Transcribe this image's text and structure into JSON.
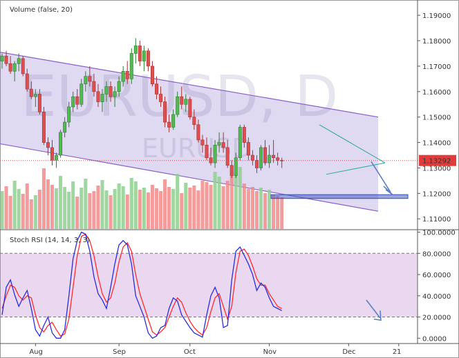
{
  "chart_data": {
    "type": "candlestick",
    "symbol": "EURUSD, D",
    "watermark_small": "EURUSD",
    "volume_title": "Volume (false, 20)",
    "rsi_title": "Stoch RSI (14, 14, 3, 3)",
    "price_axis": {
      "range": [
        1.106,
        1.196
      ],
      "ticks": [
        "1.19000",
        "1.18000",
        "1.17000",
        "1.16000",
        "1.15000",
        "1.14000",
        "1.13000",
        "1.12000",
        "1.11000"
      ]
    },
    "rsi_axis": {
      "range": [
        -5,
        101
      ],
      "ticks": [
        "100.0000",
        "80.0000",
        "60.0000",
        "40.0000",
        "20.0000",
        "0.0000"
      ],
      "band": [
        20,
        80
      ]
    },
    "time_axis": [
      "Aug",
      "Sep",
      "Oct",
      "Nov",
      "Dec",
      "21"
    ],
    "current_price": "1.13292",
    "candles": [
      [
        1.172,
        1.175,
        1.169,
        1.174
      ],
      [
        1.174,
        1.176,
        1.17,
        1.171
      ],
      [
        1.171,
        1.174,
        1.167,
        1.168
      ],
      [
        1.168,
        1.172,
        1.164,
        1.171
      ],
      [
        1.171,
        1.175,
        1.168,
        1.173
      ],
      [
        1.173,
        1.174,
        1.166,
        1.167
      ],
      [
        1.167,
        1.169,
        1.16,
        1.161
      ],
      [
        1.161,
        1.164,
        1.157,
        1.158
      ],
      [
        1.158,
        1.161,
        1.154,
        1.159
      ],
      [
        1.159,
        1.161,
        1.151,
        1.152
      ],
      [
        1.152,
        1.154,
        1.139,
        1.14
      ],
      [
        1.14,
        1.142,
        1.135,
        1.138
      ],
      [
        1.138,
        1.141,
        1.131,
        1.133
      ],
      [
        1.133,
        1.136,
        1.13,
        1.135
      ],
      [
        1.135,
        1.145,
        1.134,
        1.144
      ],
      [
        1.144,
        1.15,
        1.142,
        1.148
      ],
      [
        1.148,
        1.156,
        1.146,
        1.154
      ],
      [
        1.154,
        1.16,
        1.152,
        1.158
      ],
      [
        1.158,
        1.161,
        1.153,
        1.155
      ],
      [
        1.155,
        1.165,
        1.154,
        1.163
      ],
      [
        1.163,
        1.168,
        1.16,
        1.166
      ],
      [
        1.166,
        1.17,
        1.162,
        1.164
      ],
      [
        1.164,
        1.167,
        1.158,
        1.16
      ],
      [
        1.16,
        1.163,
        1.154,
        1.156
      ],
      [
        1.156,
        1.161,
        1.152,
        1.159
      ],
      [
        1.159,
        1.164,
        1.156,
        1.162
      ],
      [
        1.162,
        1.164,
        1.156,
        1.158
      ],
      [
        1.158,
        1.162,
        1.154,
        1.16
      ],
      [
        1.16,
        1.166,
        1.158,
        1.164
      ],
      [
        1.164,
        1.17,
        1.162,
        1.168
      ],
      [
        1.168,
        1.172,
        1.163,
        1.165
      ],
      [
        1.165,
        1.177,
        1.163,
        1.175
      ],
      [
        1.175,
        1.181,
        1.171,
        1.178
      ],
      [
        1.178,
        1.18,
        1.17,
        1.172
      ],
      [
        1.172,
        1.178,
        1.168,
        1.176
      ],
      [
        1.176,
        1.177,
        1.168,
        1.17
      ],
      [
        1.17,
        1.172,
        1.162,
        1.163
      ],
      [
        1.163,
        1.166,
        1.157,
        1.159
      ],
      [
        1.159,
        1.162,
        1.154,
        1.156
      ],
      [
        1.156,
        1.158,
        1.146,
        1.148
      ],
      [
        1.148,
        1.151,
        1.144,
        1.146
      ],
      [
        1.146,
        1.153,
        1.145,
        1.151
      ],
      [
        1.151,
        1.16,
        1.15,
        1.158
      ],
      [
        1.158,
        1.162,
        1.153,
        1.155
      ],
      [
        1.155,
        1.159,
        1.152,
        1.157
      ],
      [
        1.157,
        1.158,
        1.149,
        1.15
      ],
      [
        1.15,
        1.153,
        1.145,
        1.147
      ],
      [
        1.147,
        1.149,
        1.14,
        1.141
      ],
      [
        1.141,
        1.143,
        1.136,
        1.139
      ],
      [
        1.139,
        1.142,
        1.133,
        1.134
      ],
      [
        1.134,
        1.138,
        1.131,
        1.132
      ],
      [
        1.132,
        1.141,
        1.13,
        1.139
      ],
      [
        1.139,
        1.144,
        1.136,
        1.14
      ],
      [
        1.14,
        1.144,
        1.136,
        1.138
      ],
      [
        1.138,
        1.141,
        1.13,
        1.131
      ],
      [
        1.131,
        1.133,
        1.126,
        1.127
      ],
      [
        1.127,
        1.136,
        1.126,
        1.134
      ],
      [
        1.134,
        1.147,
        1.133,
        1.146
      ],
      [
        1.146,
        1.147,
        1.138,
        1.14
      ],
      [
        1.14,
        1.142,
        1.133,
        1.135
      ],
      [
        1.135,
        1.137,
        1.131,
        1.133
      ],
      [
        1.133,
        1.135,
        1.128,
        1.13
      ],
      [
        1.13,
        1.139,
        1.129,
        1.138
      ],
      [
        1.138,
        1.141,
        1.131,
        1.132
      ],
      [
        1.132,
        1.139,
        1.13,
        1.135
      ],
      [
        1.135,
        1.141,
        1.132,
        1.134
      ],
      [
        1.134,
        1.136,
        1.131,
        1.133
      ],
      [
        1.133,
        1.134,
        1.13,
        1.1329
      ]
    ],
    "volume": [
      0.55,
      0.62,
      0.48,
      0.7,
      0.58,
      0.51,
      0.66,
      0.43,
      0.49,
      0.57,
      0.88,
      0.72,
      0.64,
      0.59,
      0.77,
      0.61,
      0.54,
      0.69,
      0.47,
      0.6,
      0.73,
      0.52,
      0.55,
      0.63,
      0.71,
      0.56,
      0.49,
      0.58,
      0.66,
      0.62,
      0.5,
      0.74,
      0.69,
      0.57,
      0.6,
      0.53,
      0.64,
      0.59,
      0.55,
      0.72,
      0.61,
      0.58,
      0.8,
      0.52,
      0.67,
      0.6,
      0.63,
      0.56,
      0.7,
      0.68,
      0.64,
      0.83,
      0.76,
      0.62,
      0.7,
      0.86,
      0.82,
      0.9,
      0.66,
      0.58,
      0.61,
      0.55,
      0.6,
      0.52,
      0.57,
      0.5,
      0.48,
      0.46
    ],
    "stoch_k": [
      22,
      48,
      55,
      41,
      30,
      38,
      45,
      28,
      8,
      2,
      12,
      20,
      5,
      0,
      0,
      8,
      40,
      75,
      92,
      100,
      98,
      82,
      58,
      42,
      36,
      28,
      48,
      70,
      88,
      92,
      88,
      70,
      40,
      30,
      20,
      5,
      0,
      2,
      10,
      12,
      28,
      38,
      35,
      22,
      16,
      10,
      5,
      3,
      1,
      22,
      40,
      48,
      38,
      10,
      12,
      55,
      82,
      86,
      78,
      70,
      60,
      45,
      52,
      48,
      38,
      30,
      28,
      26
    ],
    "stoch_d": [
      28,
      40,
      50,
      48,
      40,
      36,
      40,
      38,
      22,
      10,
      6,
      12,
      15,
      8,
      2,
      4,
      18,
      48,
      78,
      96,
      98,
      92,
      78,
      58,
      42,
      34,
      38,
      52,
      72,
      86,
      90,
      82,
      60,
      42,
      30,
      18,
      6,
      3,
      6,
      10,
      20,
      30,
      38,
      34,
      24,
      16,
      10,
      6,
      3,
      10,
      25,
      38,
      42,
      30,
      18,
      30,
      62,
      82,
      84,
      78,
      68,
      56,
      50,
      50,
      42,
      36,
      30,
      28
    ],
    "channel": {
      "upper": [
        1.1755,
        1.15
      ],
      "lower": [
        1.1395,
        1.113
      ]
    },
    "triangle": {
      "upper": [
        1.147,
        1.132
      ],
      "lower": [
        1.1275,
        1.132
      ]
    },
    "target_zone": [
      1.118,
      1.1195
    ],
    "dates": {
      "Aug": 8,
      "Sep": 28,
      "Oct": 45,
      "Nov": 64,
      "Dec": 83,
      "21": 95
    }
  }
}
